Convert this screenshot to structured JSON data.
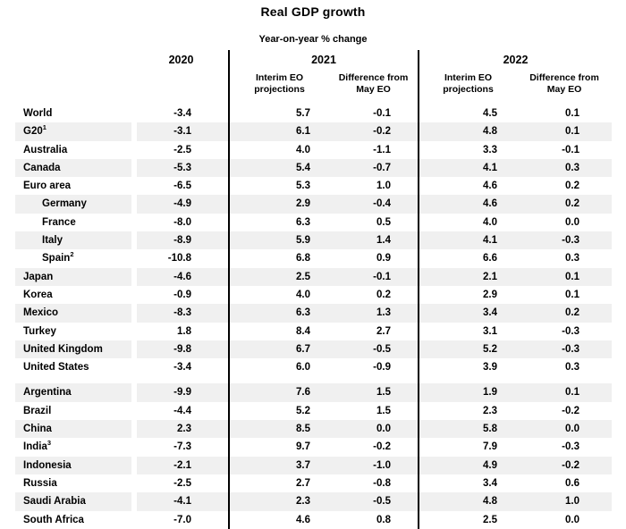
{
  "page": {
    "title": "Real GDP growth",
    "subtitle": "Year-on-year % change"
  },
  "chart_data": {
    "type": "table",
    "title": "Real GDP growth",
    "subtitle": "Year-on-year % change",
    "year_columns": [
      "2020",
      "2021",
      "2022"
    ],
    "sub_column_headers": {
      "interim": "Interim EO\nprojections",
      "difference": "Difference from\nMay EO"
    },
    "value_columns": [
      "2020",
      "2021 Interim EO projections",
      "2021 Difference from May EO",
      "2022 Interim EO projections",
      "2022 Difference from May EO"
    ],
    "rows": [
      {
        "country": "World",
        "sup": "",
        "indent": false,
        "gap_before": false,
        "values": [
          "-3.4",
          "5.7",
          "-0.1",
          "4.5",
          "0.1"
        ]
      },
      {
        "country": "G20",
        "sup": "1",
        "indent": false,
        "gap_before": false,
        "values": [
          "-3.1",
          "6.1",
          "-0.2",
          "4.8",
          "0.1"
        ]
      },
      {
        "country": "Australia",
        "sup": "",
        "indent": false,
        "gap_before": false,
        "values": [
          "-2.5",
          "4.0",
          "-1.1",
          "3.3",
          "-0.1"
        ]
      },
      {
        "country": "Canada",
        "sup": "",
        "indent": false,
        "gap_before": false,
        "values": [
          "-5.3",
          "5.4",
          "-0.7",
          "4.1",
          "0.3"
        ]
      },
      {
        "country": "Euro area",
        "sup": "",
        "indent": false,
        "gap_before": false,
        "values": [
          "-6.5",
          "5.3",
          "1.0",
          "4.6",
          "0.2"
        ]
      },
      {
        "country": "Germany",
        "sup": "",
        "indent": true,
        "gap_before": false,
        "values": [
          "-4.9",
          "2.9",
          "-0.4",
          "4.6",
          "0.2"
        ]
      },
      {
        "country": "France",
        "sup": "",
        "indent": true,
        "gap_before": false,
        "values": [
          "-8.0",
          "6.3",
          "0.5",
          "4.0",
          "0.0"
        ]
      },
      {
        "country": "Italy",
        "sup": "",
        "indent": true,
        "gap_before": false,
        "values": [
          "-8.9",
          "5.9",
          "1.4",
          "4.1",
          "-0.3"
        ]
      },
      {
        "country": "Spain",
        "sup": "2",
        "indent": true,
        "gap_before": false,
        "values": [
          "-10.8",
          "6.8",
          "0.9",
          "6.6",
          "0.3"
        ]
      },
      {
        "country": "Japan",
        "sup": "",
        "indent": false,
        "gap_before": false,
        "values": [
          "-4.6",
          "2.5",
          "-0.1",
          "2.1",
          "0.1"
        ]
      },
      {
        "country": "Korea",
        "sup": "",
        "indent": false,
        "gap_before": false,
        "values": [
          "-0.9",
          "4.0",
          "0.2",
          "2.9",
          "0.1"
        ]
      },
      {
        "country": "Mexico",
        "sup": "",
        "indent": false,
        "gap_before": false,
        "values": [
          "-8.3",
          "6.3",
          "1.3",
          "3.4",
          "0.2"
        ]
      },
      {
        "country": "Turkey",
        "sup": "",
        "indent": false,
        "gap_before": false,
        "values": [
          "1.8",
          "8.4",
          "2.7",
          "3.1",
          "-0.3"
        ]
      },
      {
        "country": "United Kingdom",
        "sup": "",
        "indent": false,
        "gap_before": false,
        "values": [
          "-9.8",
          "6.7",
          "-0.5",
          "5.2",
          "-0.3"
        ]
      },
      {
        "country": "United States",
        "sup": "",
        "indent": false,
        "gap_before": false,
        "values": [
          "-3.4",
          "6.0",
          "-0.9",
          "3.9",
          "0.3"
        ]
      },
      {
        "country": "Argentina",
        "sup": "",
        "indent": false,
        "gap_before": true,
        "values": [
          "-9.9",
          "7.6",
          "1.5",
          "1.9",
          "0.1"
        ]
      },
      {
        "country": "Brazil",
        "sup": "",
        "indent": false,
        "gap_before": false,
        "values": [
          "-4.4",
          "5.2",
          "1.5",
          "2.3",
          "-0.2"
        ]
      },
      {
        "country": "China",
        "sup": "",
        "indent": false,
        "gap_before": false,
        "values": [
          "2.3",
          "8.5",
          "0.0",
          "5.8",
          "0.0"
        ]
      },
      {
        "country": "India",
        "sup": "3",
        "indent": false,
        "gap_before": false,
        "values": [
          "-7.3",
          "9.7",
          "-0.2",
          "7.9",
          "-0.3"
        ]
      },
      {
        "country": "Indonesia",
        "sup": "",
        "indent": false,
        "gap_before": false,
        "values": [
          "-2.1",
          "3.7",
          "-1.0",
          "4.9",
          "-0.2"
        ]
      },
      {
        "country": "Russia",
        "sup": "",
        "indent": false,
        "gap_before": false,
        "values": [
          "-2.5",
          "2.7",
          "-0.8",
          "3.4",
          "0.6"
        ]
      },
      {
        "country": "Saudi Arabia",
        "sup": "",
        "indent": false,
        "gap_before": false,
        "values": [
          "-4.1",
          "2.3",
          "-0.5",
          "4.8",
          "1.0"
        ]
      },
      {
        "country": "South Africa",
        "sup": "",
        "indent": false,
        "gap_before": false,
        "values": [
          "-7.0",
          "4.6",
          "0.8",
          "2.5",
          "0.0"
        ]
      }
    ],
    "layout": {
      "legend_position": "none",
      "grid": "row-stripes",
      "dividers": "vertical lines before 2021 and 2022 column groups"
    },
    "colors": {
      "stripe": "#f0f0f0",
      "divider": "#000000",
      "text": "#000000",
      "background": "#ffffff"
    }
  }
}
